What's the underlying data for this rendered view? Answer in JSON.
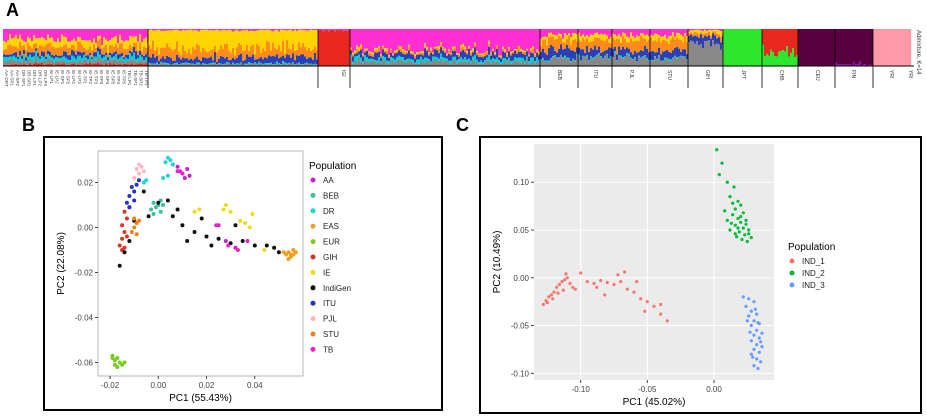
{
  "panels": {
    "a": {
      "label": "A"
    },
    "b": {
      "label": "B"
    },
    "c": {
      "label": "C"
    }
  },
  "admixture": {
    "k_label": "Admixture, K=14",
    "populations": [
      "AA",
      "BEB",
      "DR",
      "EAS",
      "EUR",
      "GIH",
      "IE",
      "IndiGen",
      "ITU",
      "PJL",
      "STU",
      "TB"
    ],
    "small_group_labels": [
      "AA-DRT",
      "AA-SP1",
      "AA-SP2",
      "DR-SP1",
      "DR-SP2",
      "DR-LP1",
      "DR-LP2",
      "DR-LP3",
      "IE-LP1",
      "IE-LP2",
      "IE-SP1",
      "IE-SP2",
      "IE-LP4",
      "IE-LP3",
      "IE-TP1",
      "IE-TP2",
      "IE-TP3",
      "IE-SP3",
      "IE-SP4",
      "IE-SP5",
      "IE-TP4",
      "IE-TP5",
      "TB-LP1",
      "TB-SP1",
      "TB-SP2",
      "TB-TP1"
    ],
    "group_labels": [
      "IGI",
      "BEB",
      "ITU",
      "PJL",
      "STU",
      "GIH",
      "JPT",
      "CHB",
      "CEU",
      "FIN",
      "YRI",
      "YRI"
    ]
  },
  "chart_data": [
    {
      "type": "scatter",
      "id": "B",
      "title": "",
      "xlabel": "PC1 (55.43%)",
      "ylabel": "PC2 (22.08%)",
      "xlim": [
        -0.025,
        0.06
      ],
      "ylim": [
        -0.066,
        0.034
      ],
      "xticks": [
        -0.02,
        0.0,
        0.02,
        0.04
      ],
      "xtick_labels": [
        "-0.02",
        "0.00",
        "0.02",
        "0.04"
      ],
      "yticks": [
        0.02,
        0.0,
        -0.02,
        -0.04,
        -0.06
      ],
      "ytick_labels": [
        "0.02",
        "0.00",
        "-0.02",
        "-0.04",
        "-0.06"
      ],
      "legend_title": "Population",
      "legend_position": "right",
      "series": [
        {
          "name": "AA",
          "color": "#cc22cc",
          "points": [
            [
              0.01,
              0.024
            ],
            [
              0.012,
              0.026
            ],
            [
              0.011,
              0.022
            ],
            [
              0.009,
              0.025
            ],
            [
              0.013,
              0.023
            ],
            [
              0.006,
              0.028
            ],
            [
              0.008,
              0.027
            ],
            [
              0.025,
              0.001
            ],
            [
              0.032,
              -0.009
            ],
            [
              0.028,
              -0.006
            ]
          ]
        },
        {
          "name": "BEB",
          "color": "#3dbf9a",
          "points": [
            [
              -0.002,
              0.011
            ],
            [
              -0.001,
              0.009
            ],
            [
              0.0,
              0.01
            ],
            [
              0.001,
              0.012
            ],
            [
              -0.003,
              0.008
            ],
            [
              0.002,
              0.01
            ],
            [
              -0.002,
              0.006
            ],
            [
              0.001,
              0.007
            ]
          ]
        },
        {
          "name": "DR",
          "color": "#22d3d8",
          "points": [
            [
              0.004,
              0.031
            ],
            [
              0.005,
              0.03
            ],
            [
              0.003,
              0.029
            ],
            [
              0.006,
              0.028
            ],
            [
              -0.005,
              0.021
            ],
            [
              -0.006,
              0.02
            ],
            [
              0.004,
              0.023
            ],
            [
              0.002,
              0.022
            ]
          ]
        },
        {
          "name": "EAS",
          "color": "#f0a020",
          "points": [
            [
              0.054,
              -0.011
            ],
            [
              0.055,
              -0.012
            ],
            [
              0.056,
              -0.01
            ],
            [
              0.053,
              -0.012
            ],
            [
              0.055,
              -0.013
            ],
            [
              0.056,
              -0.012
            ],
            [
              0.054,
              -0.014
            ],
            [
              0.052,
              -0.011
            ],
            [
              0.057,
              -0.011
            ]
          ]
        },
        {
          "name": "EUR",
          "color": "#77cc22",
          "points": [
            [
              -0.019,
              -0.057
            ],
            [
              -0.018,
              -0.059
            ],
            [
              -0.017,
              -0.058
            ],
            [
              -0.016,
              -0.06
            ],
            [
              -0.015,
              -0.061
            ],
            [
              -0.017,
              -0.062
            ],
            [
              -0.018,
              -0.061
            ],
            [
              -0.019,
              -0.058
            ],
            [
              -0.014,
              -0.06
            ]
          ]
        },
        {
          "name": "GIH",
          "color": "#dd3322",
          "points": [
            [
              -0.014,
              0.007
            ],
            [
              -0.013,
              0.004
            ],
            [
              -0.015,
              0.001
            ],
            [
              -0.014,
              -0.002
            ],
            [
              -0.015,
              -0.005
            ],
            [
              -0.016,
              -0.008
            ],
            [
              -0.014,
              -0.009
            ],
            [
              -0.013,
              -0.004
            ],
            [
              -0.012,
              0.009
            ],
            [
              -0.015,
              -0.01
            ]
          ]
        },
        {
          "name": "IE",
          "color": "#eedd11",
          "points": [
            [
              0.027,
              0.008
            ],
            [
              0.028,
              0.01
            ],
            [
              0.03,
              0.007
            ],
            [
              0.036,
              0.002
            ],
            [
              0.038,
              0.0
            ],
            [
              0.034,
              0.003
            ],
            [
              0.039,
              0.006
            ],
            [
              0.015,
              0.007
            ],
            [
              0.017,
              0.008
            ],
            [
              0.044,
              -0.01
            ]
          ]
        },
        {
          "name": "IndiGen",
          "color": "#111111",
          "points": [
            [
              0.0,
              0.011
            ],
            [
              0.006,
              0.005
            ],
            [
              0.01,
              0.001
            ],
            [
              0.015,
              -0.002
            ],
            [
              0.02,
              -0.004
            ],
            [
              0.025,
              -0.005
            ],
            [
              0.03,
              -0.007
            ],
            [
              0.035,
              -0.006
            ],
            [
              0.04,
              -0.008
            ],
            [
              0.045,
              -0.008
            ],
            [
              0.048,
              -0.009
            ],
            [
              0.05,
              -0.011
            ],
            [
              -0.01,
              0.003
            ],
            [
              -0.012,
              -0.006
            ],
            [
              -0.014,
              -0.011
            ],
            [
              -0.016,
              -0.017
            ],
            [
              0.004,
              0.012
            ],
            [
              -0.006,
              0.016
            ],
            [
              0.008,
              0.008
            ],
            [
              0.018,
              0.004
            ],
            [
              0.012,
              -0.006
            ],
            [
              0.032,
              0.001
            ],
            [
              -0.004,
              0.005
            ],
            [
              0.022,
              -0.008
            ]
          ]
        },
        {
          "name": "ITU",
          "color": "#2233cc",
          "points": [
            [
              -0.011,
              0.018
            ],
            [
              -0.012,
              0.014
            ],
            [
              -0.01,
              0.016
            ],
            [
              -0.013,
              0.011
            ],
            [
              -0.009,
              0.019
            ],
            [
              -0.008,
              0.021
            ],
            [
              -0.012,
              0.009
            ],
            [
              -0.01,
              0.012
            ]
          ]
        },
        {
          "name": "PJL",
          "color": "#ffb6c1",
          "points": [
            [
              -0.009,
              0.026
            ],
            [
              -0.008,
              0.024
            ],
            [
              -0.007,
              0.027
            ],
            [
              -0.01,
              0.022
            ],
            [
              -0.006,
              0.025
            ],
            [
              -0.008,
              0.028
            ]
          ]
        },
        {
          "name": "STU",
          "color": "#f07f1a",
          "points": [
            [
              -0.01,
              0.0
            ],
            [
              -0.009,
              0.002
            ],
            [
              -0.011,
              -0.002
            ],
            [
              -0.008,
              0.003
            ],
            [
              -0.01,
              0.004
            ],
            [
              -0.009,
              -0.003
            ]
          ]
        },
        {
          "name": "TB",
          "color": "#ee22cc",
          "points": [
            [
              0.008,
              0.025
            ],
            [
              0.01,
              0.024
            ],
            [
              0.024,
              0.001
            ],
            [
              0.029,
              -0.008
            ],
            [
              0.033,
              -0.01
            ],
            [
              0.037,
              -0.006
            ]
          ]
        }
      ]
    },
    {
      "type": "scatter",
      "id": "C",
      "title": "",
      "xlabel": "PC1 (45.02%)",
      "ylabel": "PC2 (10.49%)",
      "xlim": [
        -0.135,
        0.045
      ],
      "ylim": [
        -0.107,
        0.14
      ],
      "xticks": [
        -0.1,
        -0.05,
        0.0
      ],
      "xtick_labels": [
        "-0.10",
        "-0.05",
        "0.00"
      ],
      "yticks": [
        0.1,
        0.05,
        0.0,
        -0.05,
        -0.1
      ],
      "ytick_labels": [
        "0.10",
        "0.05",
        "0.00",
        "-0.05",
        "-0.10"
      ],
      "grid": true,
      "legend_title": "Population",
      "legend_position": "right",
      "series": [
        {
          "name": "IND_1",
          "color": "#f8766d",
          "points": [
            [
              -0.128,
              -0.028
            ],
            [
              -0.126,
              -0.024
            ],
            [
              -0.124,
              -0.02
            ],
            [
              -0.122,
              -0.018
            ],
            [
              -0.12,
              -0.015
            ],
            [
              -0.118,
              -0.01
            ],
            [
              -0.116,
              -0.007
            ],
            [
              -0.114,
              -0.004
            ],
            [
              -0.112,
              -0.002
            ],
            [
              -0.11,
              0.0
            ],
            [
              -0.108,
              -0.006
            ],
            [
              -0.106,
              -0.01
            ],
            [
              -0.104,
              -0.012
            ],
            [
              -0.113,
              -0.013
            ],
            [
              -0.117,
              -0.016
            ],
            [
              -0.121,
              -0.022
            ],
            [
              -0.125,
              -0.026
            ],
            [
              -0.111,
              0.004
            ],
            [
              -0.095,
              -0.004
            ],
            [
              -0.09,
              -0.006
            ],
            [
              -0.085,
              -0.003
            ],
            [
              -0.08,
              -0.005
            ],
            [
              -0.075,
              -0.007
            ],
            [
              -0.07,
              -0.004
            ],
            [
              -0.065,
              -0.012
            ],
            [
              -0.06,
              -0.015
            ],
            [
              -0.055,
              -0.022
            ],
            [
              -0.05,
              -0.025
            ],
            [
              -0.045,
              -0.03
            ],
            [
              -0.04,
              -0.038
            ],
            [
              -0.035,
              -0.045
            ],
            [
              -0.052,
              -0.035
            ],
            [
              -0.082,
              -0.018
            ],
            [
              -0.088,
              -0.01
            ],
            [
              -0.1,
              0.005
            ],
            [
              -0.067,
              0.006
            ],
            [
              -0.072,
              0.003
            ],
            [
              -0.058,
              -0.004
            ],
            [
              -0.04,
              -0.028
            ]
          ]
        },
        {
          "name": "IND_2",
          "color": "#00ba38",
          "points": [
            [
              0.002,
              0.134
            ],
            [
              0.006,
              0.12
            ],
            [
              0.004,
              0.108
            ],
            [
              0.01,
              0.1
            ],
            [
              0.015,
              0.095
            ],
            [
              0.012,
              0.085
            ],
            [
              0.018,
              0.08
            ],
            [
              0.02,
              0.076
            ],
            [
              0.016,
              0.072
            ],
            [
              0.022,
              0.068
            ],
            [
              0.014,
              0.066
            ],
            [
              0.018,
              0.062
            ],
            [
              0.024,
              0.06
            ],
            [
              0.02,
              0.058
            ],
            [
              0.016,
              0.055
            ],
            [
              0.022,
              0.052
            ],
            [
              0.026,
              0.05
            ],
            [
              0.019,
              0.048
            ],
            [
              0.023,
              0.045
            ],
            [
              0.017,
              0.043
            ],
            [
              0.021,
              0.04
            ],
            [
              0.025,
              0.038
            ],
            [
              0.028,
              0.042
            ],
            [
              0.012,
              0.05
            ],
            [
              0.01,
              0.06
            ],
            [
              0.008,
              0.07
            ],
            [
              0.014,
              0.078
            ],
            [
              0.024,
              0.056
            ],
            [
              0.02,
              0.064
            ],
            [
              0.016,
              0.046
            ],
            [
              0.026,
              0.046
            ],
            [
              0.013,
              0.057
            ],
            [
              0.018,
              0.052
            ]
          ]
        },
        {
          "name": "IND_3",
          "color": "#619cff",
          "points": [
            [
              0.022,
              -0.02
            ],
            [
              0.026,
              -0.022
            ],
            [
              0.03,
              -0.025
            ],
            [
              0.024,
              -0.03
            ],
            [
              0.028,
              -0.035
            ],
            [
              0.032,
              -0.038
            ],
            [
              0.026,
              -0.04
            ],
            [
              0.03,
              -0.045
            ],
            [
              0.034,
              -0.048
            ],
            [
              0.028,
              -0.05
            ],
            [
              0.032,
              -0.055
            ],
            [
              0.036,
              -0.058
            ],
            [
              0.03,
              -0.06
            ],
            [
              0.034,
              -0.063
            ],
            [
              0.028,
              -0.066
            ],
            [
              0.032,
              -0.07
            ],
            [
              0.036,
              -0.072
            ],
            [
              0.03,
              -0.075
            ],
            [
              0.034,
              -0.078
            ],
            [
              0.028,
              -0.08
            ],
            [
              0.032,
              -0.085
            ],
            [
              0.035,
              -0.088
            ],
            [
              0.03,
              -0.092
            ],
            [
              0.027,
              -0.057
            ],
            [
              0.033,
              -0.047
            ],
            [
              0.025,
              -0.045
            ],
            [
              0.031,
              -0.033
            ],
            [
              0.035,
              -0.067
            ],
            [
              0.029,
              -0.083
            ],
            [
              0.033,
              -0.095
            ]
          ]
        }
      ]
    }
  ]
}
